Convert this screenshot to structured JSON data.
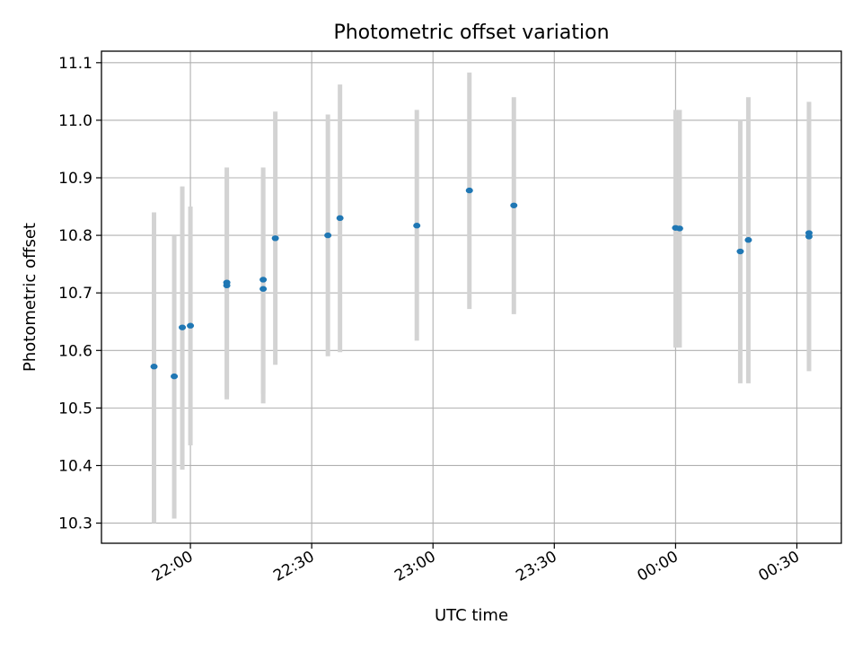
{
  "chart_data": {
    "type": "scatter",
    "title": "Photometric offset variation",
    "xlabel": "UTC time",
    "ylabel": "Photometric offset",
    "x_axis_type": "time",
    "xlim": [
      "21:38",
      "00:41"
    ],
    "ylim": [
      10.265,
      11.12
    ],
    "x_ticks": [
      {
        "time": "22:00",
        "label": "22:00"
      },
      {
        "time": "22:30",
        "label": "22:30"
      },
      {
        "time": "23:00",
        "label": "23:00"
      },
      {
        "time": "23:30",
        "label": "23:30"
      },
      {
        "time": "00:00",
        "label": "00:00"
      },
      {
        "time": "00:30",
        "label": "00:30"
      }
    ],
    "y_ticks": [
      10.3,
      10.4,
      10.5,
      10.6,
      10.7,
      10.8,
      10.9,
      11.0,
      11.1
    ],
    "grid": true,
    "legend": "none",
    "marker_color": "#1f77b4",
    "errorbar_color": "#d3d3d3",
    "points": [
      {
        "time": "21:51",
        "y": 10.572,
        "y_low": 10.3,
        "y_high": 10.84
      },
      {
        "time": "21:56",
        "y": 10.555,
        "y_low": 10.308,
        "y_high": 10.8
      },
      {
        "time": "21:58",
        "y": 10.64,
        "y_low": 10.393,
        "y_high": 10.885
      },
      {
        "time": "22:00",
        "y": 10.643,
        "y_low": 10.435,
        "y_high": 10.85
      },
      {
        "time": "22:09",
        "y": 10.713,
        "y_low": 10.52,
        "y_high": 10.905
      },
      {
        "time": "22:09",
        "y": 10.718,
        "y_low": 10.515,
        "y_high": 10.918
      },
      {
        "time": "22:18",
        "y": 10.723,
        "y_low": 10.525,
        "y_high": 10.918
      },
      {
        "time": "22:18",
        "y": 10.707,
        "y_low": 10.508,
        "y_high": 10.905
      },
      {
        "time": "22:21",
        "y": 10.795,
        "y_low": 10.575,
        "y_high": 11.015
      },
      {
        "time": "22:34",
        "y": 10.8,
        "y_low": 10.59,
        "y_high": 11.01
      },
      {
        "time": "22:37",
        "y": 10.83,
        "y_low": 10.597,
        "y_high": 11.062
      },
      {
        "time": "22:56",
        "y": 10.817,
        "y_low": 10.617,
        "y_high": 11.018
      },
      {
        "time": "23:09",
        "y": 10.878,
        "y_low": 10.672,
        "y_high": 11.083
      },
      {
        "time": "23:20",
        "y": 10.852,
        "y_low": 10.663,
        "y_high": 11.04
      },
      {
        "time": "00:00",
        "y": 10.813,
        "y_low": 10.605,
        "y_high": 11.018
      },
      {
        "time": "00:01",
        "y": 10.812,
        "y_low": 10.605,
        "y_high": 11.018
      },
      {
        "time": "00:16",
        "y": 10.772,
        "y_low": 10.543,
        "y_high": 11.0
      },
      {
        "time": "00:18",
        "y": 10.792,
        "y_low": 10.543,
        "y_high": 11.04
      },
      {
        "time": "00:33",
        "y": 10.798,
        "y_low": 10.564,
        "y_high": 11.032
      },
      {
        "time": "00:33",
        "y": 10.804,
        "y_low": 10.59,
        "y_high": 11.018
      }
    ]
  }
}
